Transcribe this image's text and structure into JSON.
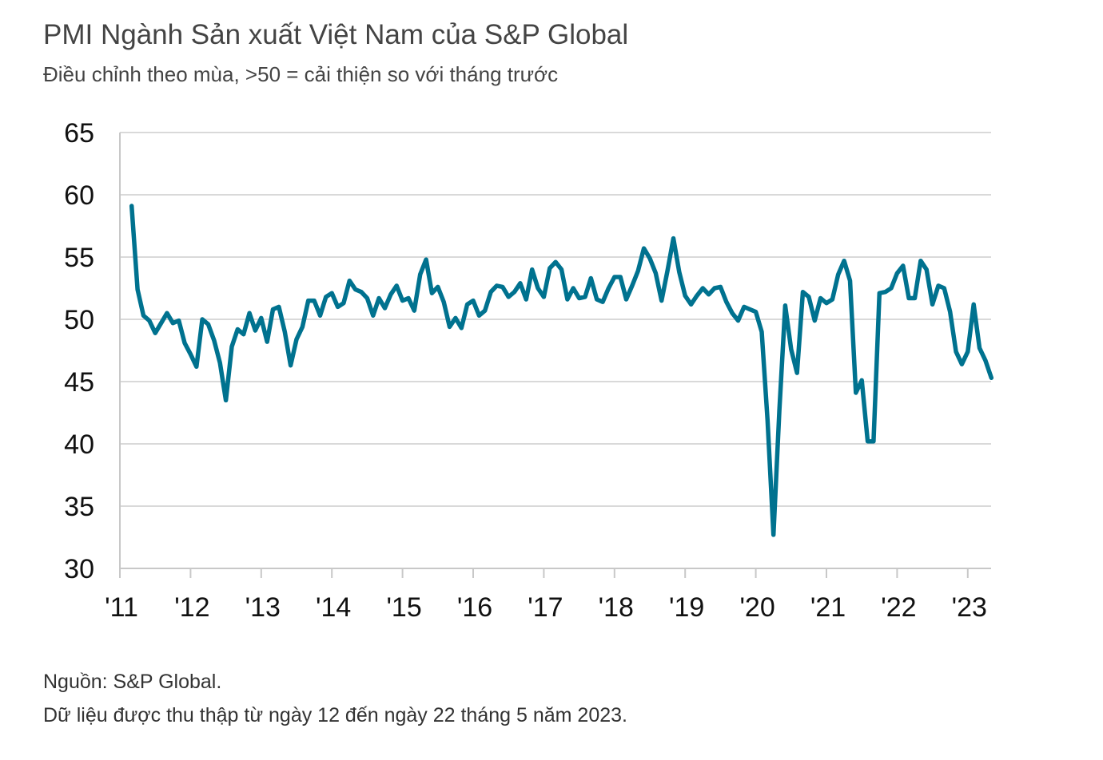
{
  "title": "PMI Ngành Sản xuất Việt Nam của S&P Global",
  "subtitle": "Điều chỉnh theo mùa, >50 = cải thiện so với tháng trước",
  "source": "Nguồn: S&P Global.",
  "note": "Dữ liệu được thu thập từ ngày 12 đến ngày 22 tháng 5 năm 2023.",
  "colors": {
    "line": "#00728f",
    "grid": "#d9d9d9",
    "axis": "#c8c8c8"
  },
  "chart_data": {
    "type": "line",
    "title": "PMI Ngành Sản xuất Việt Nam của S&P Global",
    "xlabel": "",
    "ylabel": "",
    "ylim": [
      30,
      65
    ],
    "yticks": [
      "65",
      "60",
      "55",
      "50",
      "45",
      "40",
      "35",
      "30"
    ],
    "xticks": [
      "'11",
      "'12",
      "'13",
      "'14",
      "'15",
      "'16",
      "'17",
      "'18",
      "'19",
      "'20",
      "'21",
      "'22",
      "'23"
    ],
    "grid": true,
    "legend": "none",
    "x_start": "2011-03",
    "series": [
      {
        "values": [
          59.1,
          52.4,
          50.3,
          49.9,
          48.9,
          49.7,
          50.5,
          49.7,
          49.9,
          48.1,
          47.2,
          46.2,
          50.0,
          49.6,
          48.3,
          46.5,
          43.5,
          47.8,
          49.2,
          48.8,
          50.5,
          49.1,
          50.1,
          48.2,
          50.8,
          51.0,
          49.0,
          46.3,
          48.4,
          49.4,
          51.5,
          51.5,
          50.3,
          51.8,
          52.1,
          51.0,
          51.3,
          53.1,
          52.4,
          52.2,
          51.7,
          50.3,
          51.7,
          50.9,
          52.0,
          52.7,
          51.5,
          51.7,
          50.7,
          53.6,
          54.8,
          52.1,
          52.6,
          51.4,
          49.4,
          50.1,
          49.3,
          51.2,
          51.5,
          50.3,
          50.7,
          52.2,
          52.7,
          52.6,
          51.8,
          52.2,
          52.9,
          51.6,
          54.0,
          52.5,
          51.8,
          54.1,
          54.6,
          54.0,
          51.6,
          52.5,
          51.7,
          51.8,
          53.3,
          51.6,
          51.4,
          52.5,
          53.4,
          53.4,
          51.6,
          52.7,
          53.9,
          55.7,
          54.9,
          53.7,
          51.5,
          53.9,
          56.5,
          53.8,
          51.9,
          51.2,
          51.9,
          52.5,
          52.0,
          52.5,
          52.6,
          51.4,
          50.5,
          49.9,
          51.0,
          50.8,
          50.6,
          49.0,
          41.9,
          32.7,
          42.7,
          51.1,
          47.6,
          45.7,
          52.2,
          51.8,
          49.9,
          51.7,
          51.3,
          51.6,
          53.6,
          54.7,
          53.1,
          44.1,
          45.1,
          40.2,
          40.2,
          52.1,
          52.2,
          52.5,
          53.7,
          54.3,
          51.7,
          51.7,
          54.7,
          54.0,
          51.2,
          52.7,
          52.5,
          50.6,
          47.4,
          46.4,
          47.4,
          51.2,
          47.7,
          46.7,
          45.3
        ]
      }
    ]
  }
}
